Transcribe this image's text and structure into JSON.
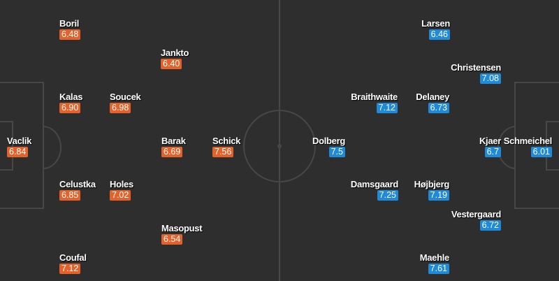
{
  "colors": {
    "home": "#e4622a",
    "away": "#1e8ad8",
    "pitch": "#2e2e2e",
    "lines": "#474747"
  },
  "home": [
    {
      "name": "Boril",
      "rating": "6.48"
    },
    {
      "name": "Jankto",
      "rating": "6.40"
    },
    {
      "name": "Kalas",
      "rating": "6.90"
    },
    {
      "name": "Soucek",
      "rating": "6.98"
    },
    {
      "name": "Vaclik",
      "rating": "6.84"
    },
    {
      "name": "Barak",
      "rating": "6.69"
    },
    {
      "name": "Schick",
      "rating": "7.56"
    },
    {
      "name": "Celustka",
      "rating": "6.85"
    },
    {
      "name": "Holes",
      "rating": "7.02"
    },
    {
      "name": "Masopust",
      "rating": "6.54"
    },
    {
      "name": "Coufal",
      "rating": "7.12"
    }
  ],
  "away": [
    {
      "name": "Larsen",
      "rating": "6.46"
    },
    {
      "name": "Christensen",
      "rating": "7.08"
    },
    {
      "name": "Braithwaite",
      "rating": "7.12"
    },
    {
      "name": "Delaney",
      "rating": "6.73"
    },
    {
      "name": "Dolberg",
      "rating": "7.5"
    },
    {
      "name": "Kjaer",
      "rating": "6.7"
    },
    {
      "name": "Schmeichel",
      "rating": "6.01"
    },
    {
      "name": "Damsgaard",
      "rating": "7.25"
    },
    {
      "name": "Højbjerg",
      "rating": "7.19"
    },
    {
      "name": "Vestergaard",
      "rating": "6.72"
    },
    {
      "name": "Maehle",
      "rating": "7.61"
    }
  ]
}
